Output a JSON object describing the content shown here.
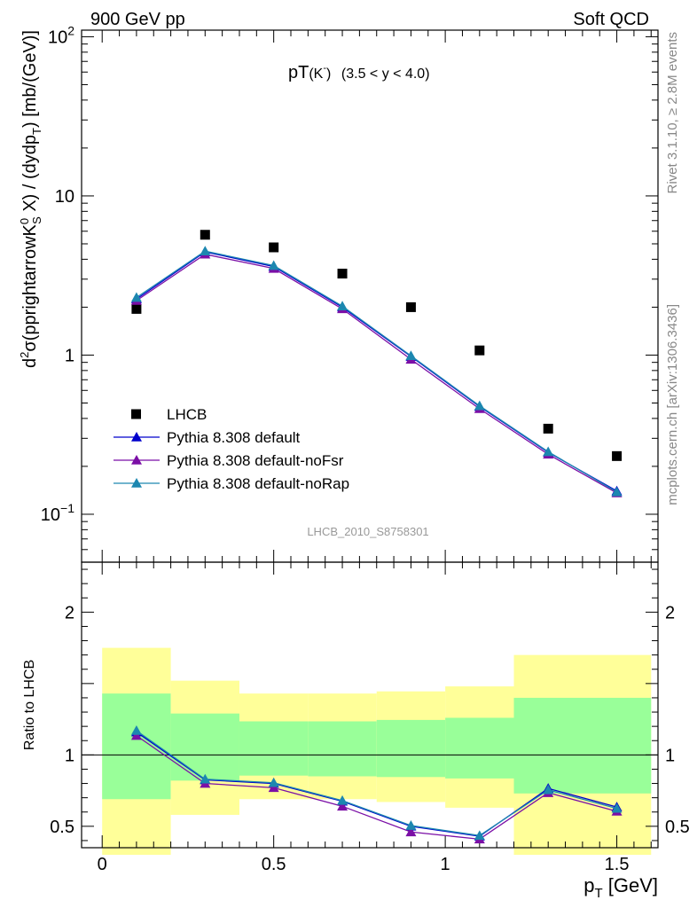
{
  "header": {
    "left": "900 GeV pp",
    "right": "Soft QCD"
  },
  "side_text": {
    "rivet": "Rivet 3.1.10, ≥ 2.8M events",
    "site": "mcplots.cern.ch [arXiv:1306.3436]"
  },
  "chart_data": [
    {
      "type": "scatter",
      "title_main": "pT",
      "title_particle": "(K",
      "title_sup": "-",
      "title_close": ")",
      "title_range": "(3.5 < y < 4.0)",
      "ylabel": "d²σ(pprightarrowK⁰S X) / (dydpT) [mb/(GeV)]",
      "ylabel_parts": {
        "a": "d",
        "a_sup": "2",
        "b": "σ(pprightarrowK",
        "b_sup": "0",
        "b_sub": "S",
        "c": " X) / (dydp",
        "c_sub": "T",
        "d": ") [mb/(GeV)]"
      },
      "yscale": "log",
      "ylim": [
        0.05,
        110
      ],
      "xlim": [
        -0.06,
        1.62
      ],
      "yticks": [
        {
          "value": 0.1,
          "base": "10",
          "exp": "−1"
        },
        {
          "value": 1,
          "base": "1",
          "exp": ""
        },
        {
          "value": 10,
          "base": "10",
          "exp": ""
        },
        {
          "value": 100,
          "base": "10",
          "exp": "2"
        }
      ],
      "watermark": "LHCB_2010_S8758301",
      "legend_position": "lower-left",
      "x": [
        0.1,
        0.3,
        0.5,
        0.7,
        0.9,
        1.1,
        1.3,
        1.5
      ],
      "series": [
        {
          "name": "LHCB",
          "color": "#000000",
          "marker": "square",
          "values": [
            1.95,
            5.7,
            4.75,
            3.25,
            2.0,
            1.07,
            0.345,
            0.232
          ]
        },
        {
          "name": "Pythia 8.308 default",
          "color": "#0000cc",
          "marker": "triangle",
          "values": [
            2.25,
            4.45,
            3.6,
            2.0,
            0.98,
            0.475,
            0.245,
            0.14
          ]
        },
        {
          "name": "Pythia 8.308 default-noFsr",
          "color": "#7b0fa6",
          "marker": "triangle",
          "values": [
            2.2,
            4.3,
            3.5,
            1.95,
            0.94,
            0.46,
            0.238,
            0.136
          ]
        },
        {
          "name": "Pythia 8.308 default-noRap",
          "color": "#1c87b0",
          "marker": "triangle",
          "values": [
            2.3,
            4.5,
            3.65,
            2.03,
            0.99,
            0.48,
            0.247,
            0.138
          ]
        }
      ]
    },
    {
      "type": "line",
      "ylabel": "Ratio to LHCB",
      "xlabel": "p",
      "xlabel_sub": "T",
      "xlabel_unit": " [GeV]",
      "ylim": [
        0.35,
        2.35
      ],
      "xlim": [
        -0.06,
        1.62
      ],
      "yticks": [
        {
          "value": 0.5,
          "label": "0.5"
        },
        {
          "value": 1,
          "label": "1"
        },
        {
          "value": 2,
          "label": "2"
        }
      ],
      "xticks": [
        {
          "value": 0,
          "label": "0"
        },
        {
          "value": 0.5,
          "label": "0.5"
        },
        {
          "value": 1,
          "label": "1"
        },
        {
          "value": 1.5,
          "label": "1.5"
        }
      ],
      "reference_line": 1,
      "band_colors": {
        "outer": "#ffff99",
        "inner": "#99ff99"
      },
      "bands": [
        {
          "x0": 0.0,
          "x1": 0.2,
          "outer": [
            0.3,
            1.75
          ],
          "inner": [
            0.69,
            1.43
          ]
        },
        {
          "x0": 0.2,
          "x1": 0.4,
          "outer": [
            0.58,
            1.52
          ],
          "inner": [
            0.82,
            1.29
          ]
        },
        {
          "x0": 0.4,
          "x1": 0.6,
          "outer": [
            0.69,
            1.43
          ],
          "inner": [
            0.855,
            1.235
          ]
        },
        {
          "x0": 0.6,
          "x1": 0.8,
          "outer": [
            0.69,
            1.43
          ],
          "inner": [
            0.85,
            1.235
          ]
        },
        {
          "x0": 0.8,
          "x1": 1.0,
          "outer": [
            0.67,
            1.445
          ],
          "inner": [
            0.845,
            1.245
          ]
        },
        {
          "x0": 1.0,
          "x1": 1.2,
          "outer": [
            0.63,
            1.48
          ],
          "inner": [
            0.835,
            1.26
          ]
        },
        {
          "x0": 1.2,
          "x1": 1.6,
          "outer": [
            0.3,
            1.7
          ],
          "inner": [
            0.73,
            1.4
          ]
        }
      ],
      "x": [
        0.1,
        0.3,
        0.5,
        0.7,
        0.9,
        1.1,
        1.3,
        1.5
      ],
      "series": [
        {
          "name": "Pythia 8.308 default",
          "color": "#0000cc",
          "values": [
            1.16,
            0.825,
            0.8,
            0.675,
            0.5,
            0.43,
            0.765,
            0.635
          ]
        },
        {
          "name": "Pythia 8.308 default-noFsr",
          "color": "#7b0fa6",
          "values": [
            1.135,
            0.8,
            0.77,
            0.64,
            0.46,
            0.41,
            0.735,
            0.605
          ]
        },
        {
          "name": "Pythia 8.308 default-noRap",
          "color": "#1c87b0",
          "values": [
            1.17,
            0.83,
            0.805,
            0.68,
            0.505,
            0.435,
            0.755,
            0.625
          ]
        }
      ]
    }
  ]
}
